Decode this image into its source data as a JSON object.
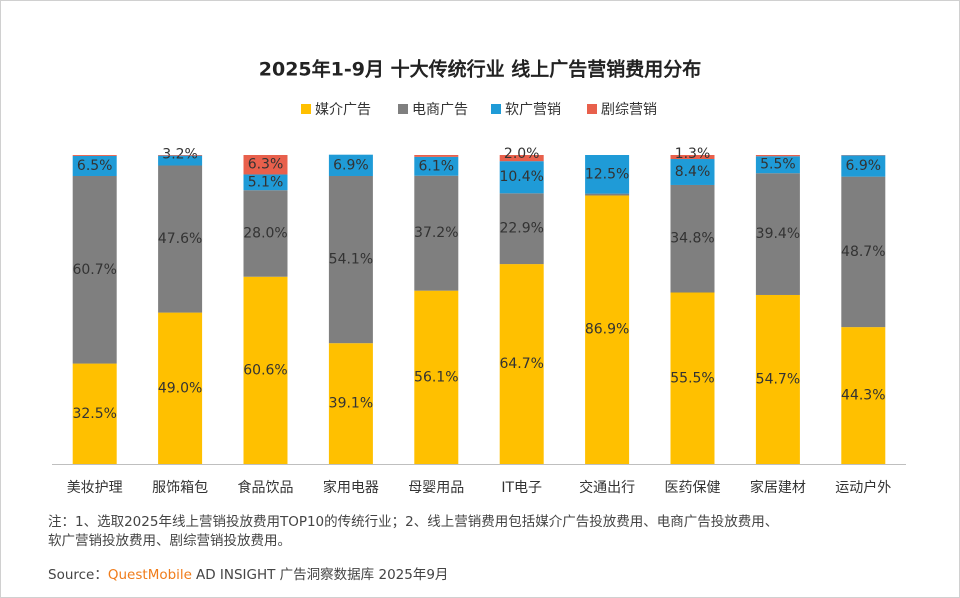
{
  "chart_data": {
    "type": "stacked_bar",
    "title": "2025年1-9月 十大传统行业 线上广告营销费用分布",
    "categories": [
      "美妆护理",
      "服饰箱包",
      "食品饮品",
      "家用电器",
      "母婴用品",
      "IT电子",
      "交通出行",
      "医药保健",
      "家居建材",
      "运动户外"
    ],
    "series": [
      {
        "name": "媒介广告",
        "color": "#FFC000",
        "values": [
          32.5,
          49.0,
          60.6,
          39.1,
          56.1,
          64.7,
          86.9,
          55.5,
          54.7,
          44.3
        ],
        "value_labels": [
          "32.5%",
          "49.0%",
          "60.6%",
          "39.1%",
          "56.1%",
          "64.7%",
          "86.9%",
          "55.5%",
          "54.7%",
          "44.3%"
        ]
      },
      {
        "name": "电商广告",
        "color": "#7F7F7F",
        "values": [
          60.7,
          47.6,
          28.0,
          54.1,
          37.2,
          22.9,
          0.6,
          34.8,
          39.4,
          48.7
        ],
        "value_labels": [
          "60.7%",
          "47.6%",
          "28.0%",
          "54.1%",
          "37.2%",
          "22.9%",
          null,
          "34.8%",
          "39.4%",
          "48.7%"
        ]
      },
      {
        "name": "软广营销",
        "color": "#1F9BD7",
        "values": [
          6.5,
          3.2,
          5.1,
          6.9,
          6.1,
          10.4,
          12.5,
          8.4,
          5.5,
          6.9
        ],
        "value_labels": [
          "6.5%",
          "3.2%",
          "5.1%",
          "6.9%",
          "6.1%",
          "10.4%",
          "12.5%",
          "8.4%",
          "5.5%",
          "6.9%"
        ]
      },
      {
        "name": "剧综营销",
        "color": "#E8604C",
        "values": [
          0.3,
          0.2,
          6.3,
          null,
          0.6,
          2.0,
          null,
          1.3,
          0.4,
          0.1
        ],
        "value_labels": [
          null,
          null,
          "6.3%",
          null,
          null,
          "2.0%",
          null,
          "1.3%",
          null,
          null
        ]
      }
    ],
    "ylim": [
      0,
      100
    ],
    "notes": [
      "注：1、选取2025年线上营销投放费用TOP10的传统行业；2、线上营销费用包括媒介广告投放费用、电商广告投放费用、",
      "软广营销投放费用、剧综营销投放费用。"
    ],
    "source": {
      "label": "Source：",
      "brand": "QuestMobile",
      "text": "AD INSIGHT 广告洞察数据库 2025年9月"
    }
  }
}
